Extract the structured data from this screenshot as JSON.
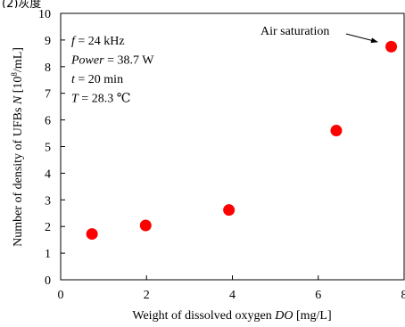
{
  "header_fragment": "(2)灰度",
  "chart_data": {
    "type": "scatter",
    "xlabel_parts": [
      {
        "text": "Weight of dissolved oxygen ",
        "italic": false
      },
      {
        "text": "DO",
        "italic": true
      },
      {
        "text": " [mg/L]",
        "italic": false
      }
    ],
    "ylabel_parts": [
      {
        "text": "Number of density of UFBs ",
        "italic": false
      },
      {
        "text": "N",
        "italic": true
      },
      {
        "text": " [10",
        "italic": false
      },
      {
        "text": "8",
        "italic": false,
        "sup": true
      },
      {
        "text": "/mL]",
        "italic": false
      }
    ],
    "xlim": [
      0,
      8
    ],
    "ylim": [
      0,
      10
    ],
    "x_ticks": [
      "0",
      "2",
      "4",
      "6",
      "8"
    ],
    "y_ticks": [
      "0",
      "1",
      "2",
      "3",
      "4",
      "5",
      "6",
      "7",
      "8",
      "9",
      "10"
    ],
    "grid": false,
    "marker_color": "#ff0000",
    "points": [
      {
        "x": 0.73,
        "y": 1.72
      },
      {
        "x": 1.98,
        "y": 2.04
      },
      {
        "x": 3.92,
        "y": 2.62
      },
      {
        "x": 6.42,
        "y": 5.6
      },
      {
        "x": 7.7,
        "y": 8.75
      }
    ],
    "conditions": [
      [
        {
          "text": "f",
          "italic": true
        },
        {
          "text": " = 24 kHz",
          "italic": false
        }
      ],
      [
        {
          "text": "Power",
          "italic": true
        },
        {
          "text": " = 38.7 W",
          "italic": false
        }
      ],
      [
        {
          "text": "t",
          "italic": true
        },
        {
          "text": " = 20 min",
          "italic": false
        }
      ],
      [
        {
          "text": "T",
          "italic": true
        },
        {
          "text": " = 28.3 ℃",
          "italic": false
        }
      ]
    ],
    "annotation": "Air saturation"
  }
}
